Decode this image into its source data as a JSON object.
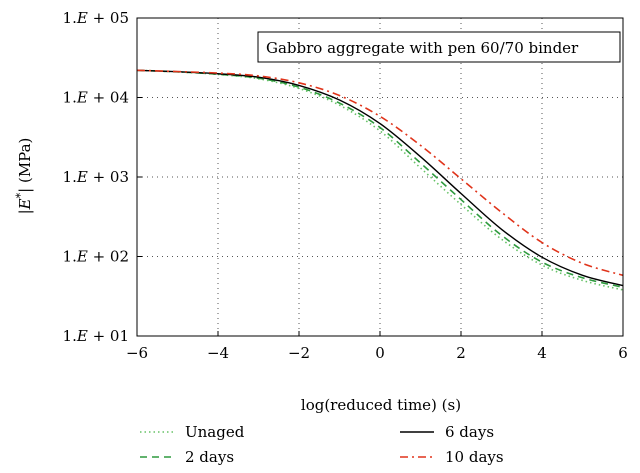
{
  "chart_data": {
    "type": "line",
    "title": "",
    "annotation": "Gabbro aggregate with pen 60/70 binder",
    "xlabel": "log(reduced time) (s)",
    "ylabel_parts": [
      "|",
      "E",
      "*",
      "| (MPa)"
    ],
    "xlim": [
      -6,
      6
    ],
    "ylim": [
      10,
      100000
    ],
    "yscale": "log",
    "grid": true,
    "legend_position": "bottom",
    "x_ticks": [
      -6,
      -4,
      -2,
      0,
      2,
      4,
      6
    ],
    "x_tick_labels": [
      "−6",
      "−4",
      "−2",
      "0",
      "2",
      "4",
      "6"
    ],
    "y_ticks": [
      10,
      100,
      1000,
      10000,
      100000
    ],
    "y_tick_labels": [
      {
        "base": "1.",
        "mid": "E",
        "exp": " + 01"
      },
      {
        "base": "1.",
        "mid": "E",
        "exp": " + 02"
      },
      {
        "base": "1.",
        "mid": "E",
        "exp": " + 03"
      },
      {
        "base": "1.",
        "mid": "E",
        "exp": " + 04"
      },
      {
        "base": "1.",
        "mid": "E",
        "exp": " + 05"
      }
    ],
    "x": [
      -6,
      -5,
      -4,
      -3,
      -2,
      -1,
      0,
      1,
      2,
      3,
      4,
      5,
      6
    ],
    "series": [
      {
        "name": "Unaged",
        "color": "#66c266",
        "dash": "1.5,3",
        "width": 1.6,
        "values": [
          22000,
          21000,
          19500,
          17200,
          13000,
          8000,
          3800,
          1300,
          450,
          165,
          78,
          50,
          38
        ]
      },
      {
        "name": "2 days",
        "color": "#2e9a3e",
        "dash": "7,5",
        "width": 1.6,
        "values": [
          22000,
          21000,
          19600,
          17500,
          13500,
          8500,
          4200,
          1500,
          520,
          185,
          85,
          54,
          41
        ]
      },
      {
        "name": "6 days",
        "color": "#000000",
        "dash": "",
        "width": 1.4,
        "values": [
          22000,
          21100,
          19900,
          18000,
          14200,
          9300,
          4700,
          1800,
          620,
          220,
          98,
          58,
          43
        ]
      },
      {
        "name": "10 days",
        "color": "#e0341b",
        "dash": "8,4,2,4",
        "width": 1.6,
        "values": [
          22000,
          21200,
          20300,
          18700,
          15300,
          10600,
          5800,
          2500,
          950,
          360,
          150,
          82,
          58
        ]
      }
    ]
  }
}
